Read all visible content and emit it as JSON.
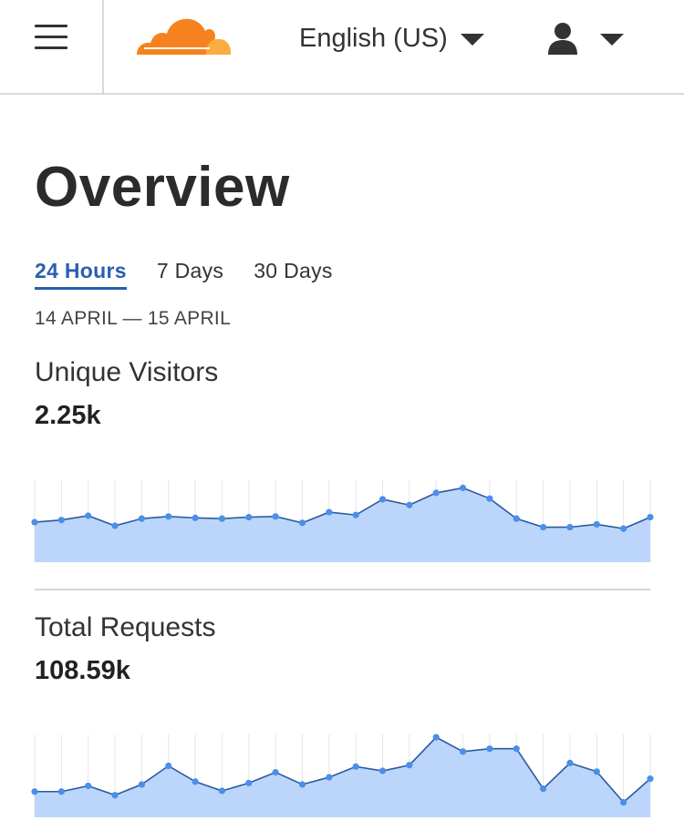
{
  "header": {
    "menu_icon": "hamburger-icon",
    "logo_icon": "cloud-logo",
    "language": "English (US)",
    "user_icon": "user-icon"
  },
  "page": {
    "title": "Overview",
    "tabs": [
      {
        "label": "24 Hours",
        "active": true
      },
      {
        "label": "7 Days",
        "active": false
      },
      {
        "label": "30 Days",
        "active": false
      }
    ],
    "date_range": "14 APRIL — 15 APRIL"
  },
  "colors": {
    "logo_orange": "#f6821f",
    "logo_light": "#fbad41",
    "active_tab": "#2a5fb0",
    "area_fill": "#bcd6fb",
    "line": "#2d5a9e",
    "point": "#4a8fe8"
  },
  "metrics": [
    {
      "label": "Unique Visitors",
      "value": "2.25k"
    },
    {
      "label": "Total Requests",
      "value": "108.59k"
    }
  ],
  "chart_data": [
    {
      "type": "area",
      "x": [
        1,
        2,
        3,
        4,
        5,
        6,
        7,
        8,
        9,
        10,
        11,
        12,
        13,
        14,
        15,
        16,
        17,
        18,
        19,
        20,
        21,
        22,
        23,
        24
      ],
      "values": [
        56,
        59,
        65,
        51,
        61,
        64,
        62,
        61,
        63,
        64,
        55,
        70,
        66,
        88,
        80,
        97,
        104,
        89,
        61,
        49,
        49,
        53,
        47,
        63
      ],
      "ylim": [
        0,
        116
      ],
      "grid": "vertical"
    },
    {
      "type": "area",
      "x": [
        1,
        2,
        3,
        4,
        5,
        6,
        7,
        8,
        9,
        10,
        11,
        12,
        13,
        14,
        15,
        16,
        17,
        18,
        19,
        20,
        21,
        22,
        23,
        24
      ],
      "values": [
        36,
        36,
        44,
        31,
        46,
        72,
        50,
        37,
        48,
        63,
        46,
        56,
        71,
        65,
        73,
        112,
        92,
        96,
        96,
        40,
        76,
        64,
        21,
        54
      ],
      "ylim": [
        0,
        116
      ],
      "grid": "vertical"
    }
  ]
}
